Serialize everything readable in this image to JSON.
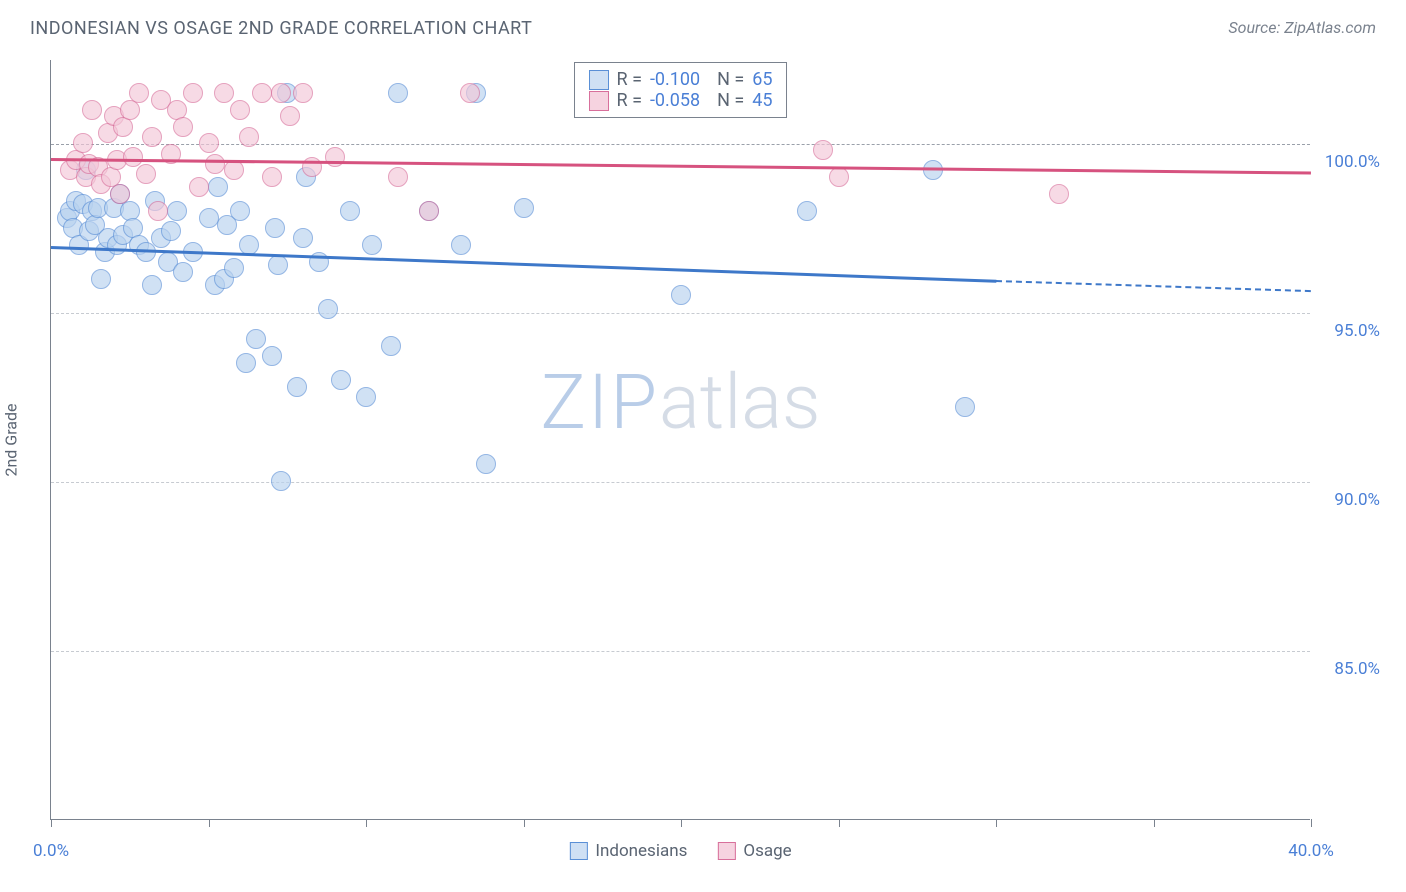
{
  "title": "INDONESIAN VS OSAGE 2ND GRADE CORRELATION CHART",
  "source": "Source: ZipAtlas.com",
  "watermark": {
    "zip": "ZIP",
    "atlas": "atlas",
    "color_zip": "#b9cde8",
    "color_atlas": "#d5dce6"
  },
  "chart": {
    "type": "scatter",
    "ylabel": "2nd Grade",
    "xlim": [
      0,
      40
    ],
    "ylim": [
      80,
      102.5
    ],
    "x_ticks": [
      0,
      5,
      10,
      15,
      20,
      25,
      30,
      35,
      40
    ],
    "x_tick_labels": {
      "0": "0.0%",
      "40": "40.0%"
    },
    "x_label_color": "#4a7fd6",
    "y_gridlines": [
      {
        "v": 100,
        "label": "100.0%",
        "color": "#9aa0aa"
      },
      {
        "v": 95,
        "label": "95.0%",
        "color": "#c7cbd1"
      },
      {
        "v": 90,
        "label": "90.0%",
        "color": "#c7cbd1"
      },
      {
        "v": 85,
        "label": "85.0%",
        "color": "#c7cbd1"
      }
    ],
    "y_label_color": "#4a7fd6",
    "legend_top": {
      "rows": [
        {
          "swatch_fill": "#cfe0f4",
          "swatch_stroke": "#5a8fd6",
          "r": "-0.100",
          "n": "65"
        },
        {
          "swatch_fill": "#f6d3e0",
          "swatch_stroke": "#d86f9b",
          "r": "-0.058",
          "n": "45"
        }
      ]
    },
    "legend_bottom": [
      {
        "label": "Indonesians",
        "fill": "#cfe0f4",
        "stroke": "#5a8fd6"
      },
      {
        "label": "Osage",
        "fill": "#f6d3e0",
        "stroke": "#d86f9b"
      }
    ],
    "series": [
      {
        "name": "Indonesians",
        "marker_fill": "#b8d2ef",
        "marker_stroke": "#5a8fd6",
        "marker_size": 20,
        "trend_color": "#3e78c9",
        "trend": {
          "x0": 0,
          "y0": 97.0,
          "x1": 30,
          "y1": 96.0,
          "x_dash_to": 40,
          "y_dash_to": 95.7
        },
        "points": [
          [
            0.5,
            97.8
          ],
          [
            0.6,
            98.0
          ],
          [
            0.7,
            97.5
          ],
          [
            0.8,
            98.3
          ],
          [
            0.9,
            97.0
          ],
          [
            1.0,
            98.2
          ],
          [
            1.1,
            99.2
          ],
          [
            1.2,
            97.4
          ],
          [
            1.3,
            98.0
          ],
          [
            1.4,
            97.6
          ],
          [
            1.5,
            98.1
          ],
          [
            1.6,
            96.0
          ],
          [
            1.7,
            96.8
          ],
          [
            1.8,
            97.2
          ],
          [
            2.0,
            98.1
          ],
          [
            2.1,
            97.0
          ],
          [
            2.2,
            98.5
          ],
          [
            2.3,
            97.3
          ],
          [
            2.5,
            98.0
          ],
          [
            2.6,
            97.5
          ],
          [
            2.8,
            97.0
          ],
          [
            3.0,
            96.8
          ],
          [
            3.2,
            95.8
          ],
          [
            3.3,
            98.3
          ],
          [
            3.5,
            97.2
          ],
          [
            3.7,
            96.5
          ],
          [
            3.8,
            97.4
          ],
          [
            4.0,
            98.0
          ],
          [
            4.2,
            96.2
          ],
          [
            4.5,
            96.8
          ],
          [
            5.0,
            97.8
          ],
          [
            5.2,
            95.8
          ],
          [
            5.3,
            98.7
          ],
          [
            5.5,
            96.0
          ],
          [
            5.6,
            97.6
          ],
          [
            5.8,
            96.3
          ],
          [
            6.0,
            98.0
          ],
          [
            6.2,
            93.5
          ],
          [
            6.3,
            97.0
          ],
          [
            6.5,
            94.2
          ],
          [
            7.0,
            93.7
          ],
          [
            7.1,
            97.5
          ],
          [
            7.2,
            96.4
          ],
          [
            7.3,
            90.0
          ],
          [
            7.5,
            101.5
          ],
          [
            7.8,
            92.8
          ],
          [
            8.0,
            97.2
          ],
          [
            8.1,
            99.0
          ],
          [
            8.5,
            96.5
          ],
          [
            8.8,
            95.1
          ],
          [
            9.2,
            93.0
          ],
          [
            9.5,
            98.0
          ],
          [
            10.0,
            92.5
          ],
          [
            10.2,
            97.0
          ],
          [
            10.8,
            94.0
          ],
          [
            11.0,
            101.5
          ],
          [
            12.0,
            98.0
          ],
          [
            13.0,
            97.0
          ],
          [
            13.5,
            101.5
          ],
          [
            13.8,
            90.5
          ],
          [
            15.0,
            98.1
          ],
          [
            20.0,
            95.5
          ],
          [
            24.0,
            98.0
          ],
          [
            28.0,
            99.2
          ],
          [
            29.0,
            92.2
          ]
        ]
      },
      {
        "name": "Osage",
        "marker_fill": "#f3c7d8",
        "marker_stroke": "#d86f9b",
        "marker_size": 20,
        "trend_color": "#d6527f",
        "trend": {
          "x0": 0,
          "y0": 99.6,
          "x1": 40,
          "y1": 99.2
        },
        "points": [
          [
            0.6,
            99.2
          ],
          [
            0.8,
            99.5
          ],
          [
            1.0,
            100.0
          ],
          [
            1.1,
            99.0
          ],
          [
            1.2,
            99.4
          ],
          [
            1.3,
            101.0
          ],
          [
            1.5,
            99.3
          ],
          [
            1.6,
            98.8
          ],
          [
            1.8,
            100.3
          ],
          [
            1.9,
            99.0
          ],
          [
            2.0,
            100.8
          ],
          [
            2.1,
            99.5
          ],
          [
            2.2,
            98.5
          ],
          [
            2.3,
            100.5
          ],
          [
            2.5,
            101.0
          ],
          [
            2.6,
            99.6
          ],
          [
            2.8,
            101.5
          ],
          [
            3.0,
            99.1
          ],
          [
            3.2,
            100.2
          ],
          [
            3.4,
            98.0
          ],
          [
            3.5,
            101.3
          ],
          [
            3.8,
            99.7
          ],
          [
            4.0,
            101.0
          ],
          [
            4.2,
            100.5
          ],
          [
            4.5,
            101.5
          ],
          [
            4.7,
            98.7
          ],
          [
            5.0,
            100.0
          ],
          [
            5.2,
            99.4
          ],
          [
            5.5,
            101.5
          ],
          [
            5.8,
            99.2
          ],
          [
            6.0,
            101.0
          ],
          [
            6.3,
            100.2
          ],
          [
            6.7,
            101.5
          ],
          [
            7.0,
            99.0
          ],
          [
            7.3,
            101.5
          ],
          [
            7.6,
            100.8
          ],
          [
            8.0,
            101.5
          ],
          [
            8.3,
            99.3
          ],
          [
            9.0,
            99.6
          ],
          [
            11.0,
            99.0
          ],
          [
            12.0,
            98.0
          ],
          [
            13.3,
            101.5
          ],
          [
            24.5,
            99.8
          ],
          [
            25.0,
            99.0
          ],
          [
            32.0,
            98.5
          ]
        ]
      }
    ]
  }
}
